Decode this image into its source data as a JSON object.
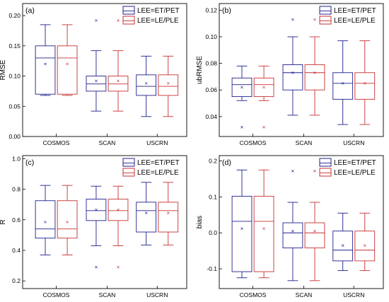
{
  "chart_data": [
    {
      "type": "box",
      "panel_label": "(a)",
      "ylabel": "RMSE",
      "categories": [
        "COSMOS",
        "SCAN",
        "USCRN"
      ],
      "ylim": [
        0.0,
        0.22
      ],
      "yticks": [
        "0.00",
        "0.05",
        "0.10",
        "0.15",
        "0.20"
      ],
      "ytick_values": [
        0.0,
        0.05,
        0.1,
        0.15,
        0.2
      ],
      "legend": [
        "LEE=ET/PET",
        "LEE=LE/PLE"
      ],
      "series": [
        {
          "name": "LEE=ET/PET",
          "color": "#1f1f8f",
          "boxes": [
            {
              "whisker_low": 0.068,
              "q1": 0.07,
              "median": 0.13,
              "q3": 0.15,
              "whisker_high": 0.185,
              "mean": 0.12,
              "outliers": []
            },
            {
              "whisker_low": 0.042,
              "q1": 0.075,
              "median": 0.087,
              "q3": 0.1,
              "whisker_high": 0.142,
              "mean": 0.092,
              "outliers": [
                0.192
              ]
            },
            {
              "whisker_low": 0.033,
              "q1": 0.068,
              "median": 0.083,
              "q3": 0.102,
              "whisker_high": 0.133,
              "mean": 0.088,
              "outliers": []
            }
          ]
        },
        {
          "name": "LEE=LE/PLE",
          "color": "#c83030",
          "boxes": [
            {
              "whisker_low": 0.068,
              "q1": 0.07,
              "median": 0.13,
              "q3": 0.15,
              "whisker_high": 0.185,
              "mean": 0.12,
              "outliers": []
            },
            {
              "whisker_low": 0.042,
              "q1": 0.075,
              "median": 0.087,
              "q3": 0.1,
              "whisker_high": 0.142,
              "mean": 0.092,
              "outliers": [
                0.192
              ]
            },
            {
              "whisker_low": 0.033,
              "q1": 0.068,
              "median": 0.083,
              "q3": 0.102,
              "whisker_high": 0.133,
              "mean": 0.088,
              "outliers": []
            }
          ]
        }
      ]
    },
    {
      "type": "box",
      "panel_label": "(b)",
      "ylabel": "ubRMSE",
      "categories": [
        "COSMOS",
        "SCAN",
        "USCRN"
      ],
      "ylim": [
        0.025,
        0.125
      ],
      "yticks": [
        "0.04",
        "0.06",
        "0.08",
        "0.10",
        "0.12"
      ],
      "ytick_values": [
        0.04,
        0.06,
        0.08,
        0.1,
        0.12
      ],
      "legend": [
        "LEE=ET/PET",
        "LEE=LE/PLE"
      ],
      "series": [
        {
          "name": "LEE=ET/PET",
          "color": "#1f1f8f",
          "boxes": [
            {
              "whisker_low": 0.052,
              "q1": 0.055,
              "median": 0.064,
              "q3": 0.069,
              "whisker_high": 0.078,
              "mean": 0.062,
              "outliers": [
                0.032
              ]
            },
            {
              "whisker_low": 0.041,
              "q1": 0.06,
              "median": 0.073,
              "q3": 0.079,
              "whisker_high": 0.1,
              "mean": 0.073,
              "outliers": [
                0.113
              ]
            },
            {
              "whisker_low": 0.034,
              "q1": 0.053,
              "median": 0.065,
              "q3": 0.073,
              "whisker_high": 0.097,
              "mean": 0.065,
              "outliers": []
            }
          ]
        },
        {
          "name": "LEE=LE/PLE",
          "color": "#c83030",
          "boxes": [
            {
              "whisker_low": 0.052,
              "q1": 0.055,
              "median": 0.064,
              "q3": 0.069,
              "whisker_high": 0.078,
              "mean": 0.062,
              "outliers": [
                0.032
              ]
            },
            {
              "whisker_low": 0.041,
              "q1": 0.06,
              "median": 0.073,
              "q3": 0.079,
              "whisker_high": 0.1,
              "mean": 0.073,
              "outliers": [
                0.113
              ]
            },
            {
              "whisker_low": 0.034,
              "q1": 0.053,
              "median": 0.065,
              "q3": 0.073,
              "whisker_high": 0.097,
              "mean": 0.065,
              "outliers": []
            }
          ]
        }
      ]
    },
    {
      "type": "box",
      "panel_label": "(c)",
      "ylabel": "R",
      "categories": [
        "COSMOS",
        "SCAN",
        "USCRN"
      ],
      "ylim": [
        0.15,
        1.02
      ],
      "yticks": [
        "0.2",
        "0.4",
        "0.6",
        "0.8",
        "1.0"
      ],
      "ytick_values": [
        0.2,
        0.4,
        0.6,
        0.8,
        1.0
      ],
      "legend": [
        "LEE=ET/PET",
        "LEE=LE/PLE"
      ],
      "series": [
        {
          "name": "LEE=ET/PET",
          "color": "#1f1f8f",
          "boxes": [
            {
              "whisker_low": 0.37,
              "q1": 0.48,
              "median": 0.54,
              "q3": 0.725,
              "whisker_high": 0.825,
              "mean": 0.585,
              "outliers": []
            },
            {
              "whisker_low": 0.43,
              "q1": 0.595,
              "median": 0.66,
              "q3": 0.735,
              "whisker_high": 0.82,
              "mean": 0.665,
              "outliers": [
                0.29
              ]
            },
            {
              "whisker_low": 0.435,
              "q1": 0.52,
              "median": 0.66,
              "q3": 0.715,
              "whisker_high": 0.845,
              "mean": 0.645,
              "outliers": []
            }
          ]
        },
        {
          "name": "LEE=LE/PLE",
          "color": "#c83030",
          "boxes": [
            {
              "whisker_low": 0.37,
              "q1": 0.48,
              "median": 0.54,
              "q3": 0.725,
              "whisker_high": 0.825,
              "mean": 0.585,
              "outliers": []
            },
            {
              "whisker_low": 0.43,
              "q1": 0.595,
              "median": 0.66,
              "q3": 0.735,
              "whisker_high": 0.82,
              "mean": 0.665,
              "outliers": [
                0.29
              ]
            },
            {
              "whisker_low": 0.435,
              "q1": 0.52,
              "median": 0.66,
              "q3": 0.715,
              "whisker_high": 0.845,
              "mean": 0.645,
              "outliers": []
            }
          ]
        }
      ]
    },
    {
      "type": "box",
      "panel_label": "(d)",
      "ylabel": "bias",
      "categories": [
        "COSMOS",
        "SCAN",
        "USCRN"
      ],
      "ylim": [
        -0.155,
        0.215
      ],
      "yticks": [
        "-0.1",
        "0.0",
        "0.1",
        "0.2"
      ],
      "ytick_values": [
        -0.1,
        0.0,
        0.1,
        0.2
      ],
      "legend": [
        "LEE=ET/PET",
        "LEE=LE/PLE"
      ],
      "series": [
        {
          "name": "LEE=ET/PET",
          "color": "#1f1f8f",
          "boxes": [
            {
              "whisker_low": -0.125,
              "q1": -0.108,
              "median": 0.032,
              "q3": 0.102,
              "whisker_high": 0.175,
              "mean": 0.012,
              "outliers": []
            },
            {
              "whisker_low": -0.133,
              "q1": -0.042,
              "median": 0.0,
              "q3": 0.028,
              "whisker_high": 0.085,
              "mean": 0.005,
              "outliers": [
                0.172
              ]
            },
            {
              "whisker_low": -0.105,
              "q1": -0.078,
              "median": -0.048,
              "q3": 0.005,
              "whisker_high": 0.055,
              "mean": -0.035,
              "outliers": []
            }
          ]
        },
        {
          "name": "LEE=LE/PLE",
          "color": "#c83030",
          "boxes": [
            {
              "whisker_low": -0.125,
              "q1": -0.108,
              "median": 0.032,
              "q3": 0.102,
              "whisker_high": 0.175,
              "mean": 0.012,
              "outliers": []
            },
            {
              "whisker_low": -0.133,
              "q1": -0.042,
              "median": 0.0,
              "q3": 0.028,
              "whisker_high": 0.085,
              "mean": 0.005,
              "outliers": [
                0.172
              ]
            },
            {
              "whisker_low": -0.105,
              "q1": -0.078,
              "median": -0.048,
              "q3": 0.005,
              "whisker_high": 0.055,
              "mean": -0.035,
              "outliers": []
            }
          ]
        }
      ]
    }
  ]
}
